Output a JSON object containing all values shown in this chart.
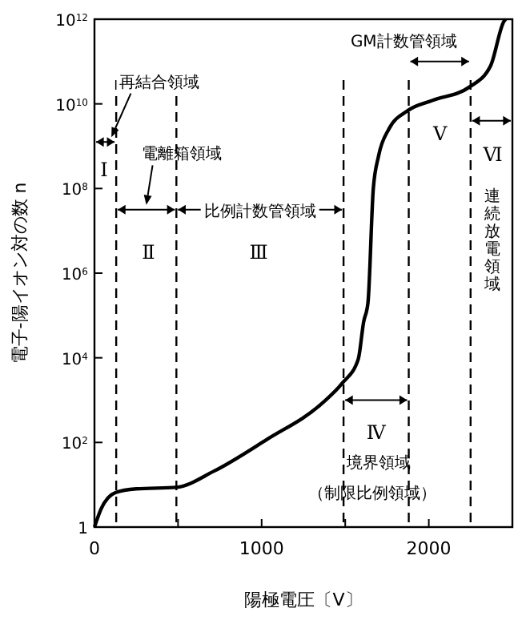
{
  "chart_data": {
    "type": "line",
    "xlabel": "陽極電圧〔V〕",
    "ylabel": "電子-陽イオン対の数 n",
    "log": "y",
    "xlim": [
      0,
      2500
    ],
    "ylim": [
      1,
      1000000000000
    ],
    "xticks": [
      0,
      {
        "value": 500,
        "label": null
      },
      1000,
      {
        "value": 1500,
        "label": null
      },
      2000
    ],
    "yticks": [
      1,
      {
        "value": 100,
        "label": "10$^{2}$"
      },
      {
        "value": 10000,
        "label": "10$^{4}$"
      },
      {
        "value": 1000000,
        "label": "10$^{6}$"
      },
      {
        "value": 100000000,
        "label": "10$^{8}$"
      },
      {
        "value": 10000000000,
        "label": "10$^{10}$"
      },
      {
        "value": 1000000000000,
        "label": "10$^{12}$"
      }
    ],
    "x": [
      0,
      40,
      125,
      250,
      490,
      715,
      1035,
      1355,
      1482,
      1578,
      1610,
      1636,
      1668,
      1700,
      1760,
      1876,
      2020,
      2243,
      2370,
      2450,
      2460
    ],
    "series": [
      {
        "color": "#000000",
        "values": [
          1,
          2.7,
          6.5,
          8,
          8.7,
          21,
          120,
          800,
          2500,
          9300,
          70000,
          200000,
          100000000,
          600000000,
          2500000000,
          7000000000,
          12000000000,
          25000000000,
          80000000000,
          900000000000,
          1000000000000
        ]
      }
    ],
    "marker": "none",
    "line_style": "solid",
    "ref_lines": [
      {
        "axis": "x",
        "value": 130,
        "line_style": "dashed",
        "color": "#000000"
      },
      {
        "axis": "x",
        "value": 490,
        "line_style": "dashed",
        "color": "#000000"
      },
      {
        "axis": "x",
        "value": 1490,
        "line_style": "dashed",
        "color": "#000000"
      },
      {
        "axis": "x",
        "value": 1880,
        "line_style": "dashed",
        "color": "#000000"
      },
      {
        "axis": "x",
        "value": 2250,
        "line_style": "dashed",
        "color": "#000000"
      }
    ],
    "annotations": [
      "再結合領域",
      "電離箱領域",
      "比例計数管領域",
      "GM計数管領域",
      "境界領域",
      "（制限比例領域）",
      "Ⅰ",
      "Ⅱ",
      "Ⅲ",
      "Ⅳ",
      "Ⅴ",
      "Ⅵ",
      "連続放電領域"
    ]
  }
}
